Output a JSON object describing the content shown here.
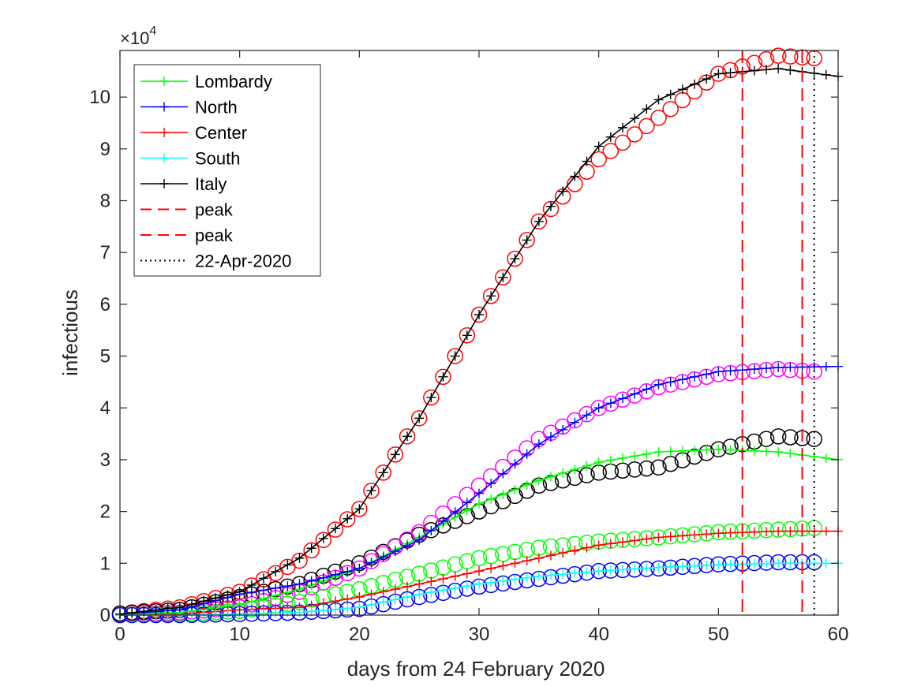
{
  "chart_data": {
    "type": "line",
    "xlabel": "days from 24 February 2020",
    "ylabel": "infectious",
    "exponent_label": "×10",
    "exponent_power": "4",
    "xlim": [
      0,
      60
    ],
    "ylim": [
      0,
      10.9
    ],
    "xticks": [
      0,
      10,
      20,
      30,
      40,
      50,
      60
    ],
    "yticks": [
      0,
      1,
      2,
      3,
      4,
      5,
      6,
      7,
      8,
      9,
      10
    ],
    "model_series": [
      {
        "name": "Lombardy",
        "legend": "Lombardy",
        "color": "#00ff00",
        "points": [
          [
            0,
            0.02
          ],
          [
            5,
            0.05
          ],
          [
            10,
            0.2
          ],
          [
            15,
            0.5
          ],
          [
            20,
            0.9
          ],
          [
            25,
            1.5
          ],
          [
            30,
            2.15
          ],
          [
            35,
            2.6
          ],
          [
            40,
            2.95
          ],
          [
            45,
            3.15
          ],
          [
            50,
            3.2
          ],
          [
            55,
            3.15
          ],
          [
            60,
            3.0
          ]
        ]
      },
      {
        "name": "North",
        "legend": "North",
        "color": "#0000ff",
        "points": [
          [
            0,
            0.02
          ],
          [
            5,
            0.1
          ],
          [
            10,
            0.4
          ],
          [
            15,
            0.6
          ],
          [
            20,
            0.9
          ],
          [
            25,
            1.45
          ],
          [
            30,
            2.35
          ],
          [
            35,
            3.3
          ],
          [
            40,
            4.0
          ],
          [
            45,
            4.45
          ],
          [
            50,
            4.7
          ],
          [
            55,
            4.78
          ],
          [
            60,
            4.8
          ]
        ]
      },
      {
        "name": "Center",
        "legend": "Center",
        "color": "#ff0000",
        "points": [
          [
            0,
            0.0
          ],
          [
            5,
            0.02
          ],
          [
            10,
            0.1
          ],
          [
            15,
            0.15
          ],
          [
            20,
            0.35
          ],
          [
            25,
            0.6
          ],
          [
            30,
            0.85
          ],
          [
            35,
            1.1
          ],
          [
            40,
            1.35
          ],
          [
            45,
            1.5
          ],
          [
            50,
            1.58
          ],
          [
            55,
            1.62
          ],
          [
            60,
            1.62
          ]
        ]
      },
      {
        "name": "South",
        "legend": "South",
        "color": "#00ffff",
        "points": [
          [
            0,
            0.0
          ],
          [
            5,
            0.0
          ],
          [
            10,
            0.02
          ],
          [
            15,
            0.05
          ],
          [
            20,
            0.15
          ],
          [
            25,
            0.4
          ],
          [
            30,
            0.6
          ],
          [
            35,
            0.75
          ],
          [
            40,
            0.85
          ],
          [
            45,
            0.92
          ],
          [
            50,
            0.97
          ],
          [
            55,
            1.0
          ],
          [
            60,
            1.0
          ]
        ]
      },
      {
        "name": "Italy",
        "legend": "Italy",
        "color": "#000000",
        "points": [
          [
            0,
            0.02
          ],
          [
            5,
            0.15
          ],
          [
            10,
            0.45
          ],
          [
            15,
            1.1
          ],
          [
            20,
            2.05
          ],
          [
            25,
            3.8
          ],
          [
            30,
            5.8
          ],
          [
            35,
            7.6
          ],
          [
            40,
            9.05
          ],
          [
            45,
            9.95
          ],
          [
            50,
            10.45
          ],
          [
            55,
            10.55
          ],
          [
            60,
            10.4
          ]
        ]
      }
    ],
    "observed_series": [
      {
        "name": "Italy observed",
        "color": "#ff0000",
        "points": [
          [
            0,
            0.03
          ],
          [
            5,
            0.15
          ],
          [
            10,
            0.45
          ],
          [
            15,
            1.05
          ],
          [
            20,
            2.05
          ],
          [
            25,
            3.8
          ],
          [
            30,
            5.8
          ],
          [
            35,
            7.6
          ],
          [
            40,
            8.8
          ],
          [
            45,
            9.6
          ],
          [
            50,
            10.45
          ],
          [
            55,
            10.8
          ],
          [
            58,
            10.75
          ]
        ]
      },
      {
        "name": "Lombardy observed",
        "color": "#000000",
        "points": [
          [
            0,
            0.03
          ],
          [
            5,
            0.1
          ],
          [
            10,
            0.35
          ],
          [
            15,
            0.6
          ],
          [
            20,
            1.0
          ],
          [
            25,
            1.55
          ],
          [
            30,
            2.0
          ],
          [
            35,
            2.5
          ],
          [
            40,
            2.75
          ],
          [
            45,
            2.85
          ],
          [
            50,
            3.2
          ],
          [
            55,
            3.45
          ],
          [
            58,
            3.4
          ]
        ]
      },
      {
        "name": "North observed",
        "color": "#ff00ff",
        "points": [
          [
            0,
            0.0
          ],
          [
            5,
            0.05
          ],
          [
            10,
            0.15
          ],
          [
            15,
            0.45
          ],
          [
            20,
            0.9
          ],
          [
            25,
            1.6
          ],
          [
            30,
            2.5
          ],
          [
            35,
            3.4
          ],
          [
            40,
            4.0
          ],
          [
            45,
            4.4
          ],
          [
            50,
            4.65
          ],
          [
            55,
            4.75
          ],
          [
            58,
            4.7
          ]
        ]
      },
      {
        "name": "Center observed",
        "color": "#00ff00",
        "points": [
          [
            0,
            0.0
          ],
          [
            5,
            0.02
          ],
          [
            10,
            0.08
          ],
          [
            15,
            0.25
          ],
          [
            20,
            0.5
          ],
          [
            25,
            0.8
          ],
          [
            30,
            1.1
          ],
          [
            35,
            1.3
          ],
          [
            40,
            1.42
          ],
          [
            45,
            1.5
          ],
          [
            50,
            1.6
          ],
          [
            55,
            1.65
          ],
          [
            58,
            1.68
          ]
        ]
      },
      {
        "name": "South observed",
        "color": "#0000ff",
        "points": [
          [
            0,
            0.0
          ],
          [
            5,
            0.0
          ],
          [
            10,
            0.02
          ],
          [
            15,
            0.05
          ],
          [
            20,
            0.12
          ],
          [
            25,
            0.35
          ],
          [
            30,
            0.55
          ],
          [
            35,
            0.7
          ],
          [
            40,
            0.85
          ],
          [
            45,
            0.9
          ],
          [
            50,
            0.98
          ],
          [
            55,
            1.02
          ],
          [
            58,
            1.02
          ]
        ]
      }
    ],
    "vlines": [
      {
        "x": 52,
        "legend": "peak",
        "color": "#ff0000",
        "style": "dashed"
      },
      {
        "x": 57,
        "legend": "peak",
        "color": "#ff0000",
        "style": "dashed"
      },
      {
        "x": 58,
        "legend": "22-Apr-2020",
        "color": "#000000",
        "style": "dotted"
      }
    ],
    "legend_position": "top-left"
  }
}
